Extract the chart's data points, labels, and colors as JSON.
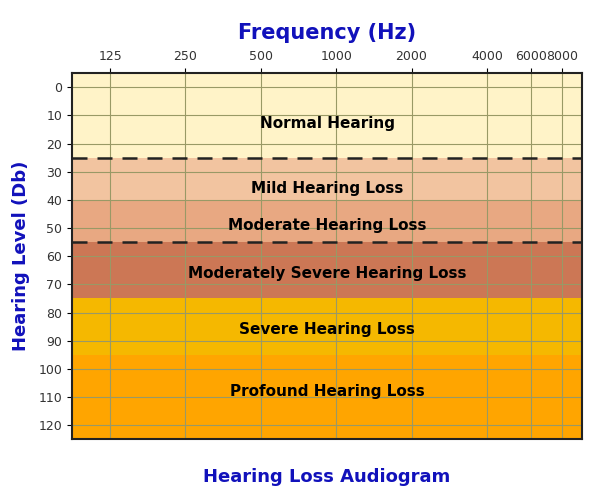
{
  "title_top": "Frequency (Hz)",
  "title_bottom": "Hearing Loss Audiogram",
  "ylabel": "Hearing Level (Db)",
  "x_ticks": [
    125,
    250,
    500,
    1000,
    2000,
    4000,
    6000,
    8000
  ],
  "y_ticks": [
    0,
    10,
    20,
    30,
    40,
    50,
    60,
    70,
    80,
    90,
    100,
    110,
    120
  ],
  "ylim_top": -5,
  "ylim_bottom": 125,
  "background_color": "#ffffff",
  "zones": [
    {
      "label": "Normal Hearing",
      "y_start": -5,
      "y_end": 25,
      "color": "#FFF3C8"
    },
    {
      "label": "Mild Hearing Loss",
      "y_start": 25,
      "y_end": 40,
      "color": "#F2C4A0"
    },
    {
      "label": "Moderate Hearing Loss",
      "y_start": 40,
      "y_end": 55,
      "color": "#E8A882"
    },
    {
      "label": "Moderately Severe Hearing Loss",
      "y_start": 55,
      "y_end": 75,
      "color": "#CC7755"
    },
    {
      "label": "Severe Hearing Loss",
      "y_start": 75,
      "y_end": 95,
      "color": "#F5B800"
    },
    {
      "label": "Profound Hearing Loss",
      "y_start": 95,
      "y_end": 127,
      "color": "#FFA500"
    }
  ],
  "dashed_lines": [
    25,
    55
  ],
  "label_positions": [
    {
      "label": "Normal Hearing",
      "y": 13
    },
    {
      "label": "Mild Hearing Loss",
      "y": 36
    },
    {
      "label": "Moderate Hearing Loss",
      "y": 49
    },
    {
      "label": "Moderately Severe Hearing Loss",
      "y": 66
    },
    {
      "label": "Severe Hearing Loss",
      "y": 86
    },
    {
      "label": "Profound Hearing Loss",
      "y": 108
    }
  ],
  "grid_color": "#999966",
  "dashed_line_color": "#222222",
  "title_color": "#1111BB",
  "label_color": "#000000",
  "ylabel_color": "#1111BB",
  "border_color": "#222222",
  "tick_fontsize": 9,
  "label_fontsize": 11,
  "title_fontsize": 15,
  "subtitle_fontsize": 13
}
